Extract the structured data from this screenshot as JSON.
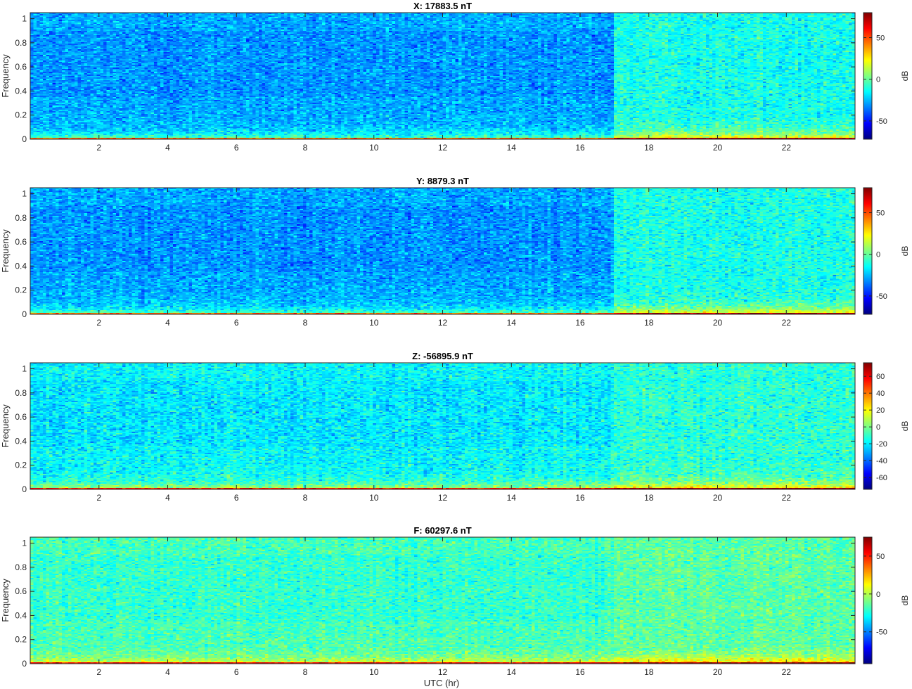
{
  "figure": {
    "xlabel": "UTC (hr)"
  },
  "colormap": "jet",
  "chart_data": [
    {
      "type": "heatmap",
      "title": "X: 17883.5 nT",
      "xlabel": "",
      "ylabel": "Frequency",
      "colorbar_label": "dB",
      "xlim": [
        0,
        24
      ],
      "ylim": [
        0,
        1.05
      ],
      "xticks": [
        2,
        4,
        6,
        8,
        10,
        12,
        14,
        16,
        18,
        20,
        22
      ],
      "yticks": [
        0,
        0.2,
        0.4,
        0.6,
        0.8,
        1
      ],
      "clim": [
        -72,
        80
      ],
      "cticks": [
        -50,
        0,
        50
      ],
      "base_level": -28,
      "late_level": -12,
      "shift_hour": 17
    },
    {
      "type": "heatmap",
      "title": "Y: 8879.3 nT",
      "xlabel": "",
      "ylabel": "Frequency",
      "colorbar_label": "dB",
      "xlim": [
        0,
        24
      ],
      "ylim": [
        0,
        1.05
      ],
      "xticks": [
        2,
        4,
        6,
        8,
        10,
        12,
        14,
        16,
        18,
        20,
        22
      ],
      "yticks": [
        0,
        0.2,
        0.4,
        0.6,
        0.8,
        1
      ],
      "clim": [
        -72,
        80
      ],
      "cticks": [
        -50,
        0,
        50
      ],
      "base_level": -28,
      "late_level": -12,
      "shift_hour": 17
    },
    {
      "type": "heatmap",
      "title": "Z: -56895.9 nT",
      "xlabel": "",
      "ylabel": "Frequency",
      "colorbar_label": "dB",
      "xlim": [
        0,
        24
      ],
      "ylim": [
        0,
        1.05
      ],
      "xticks": [
        2,
        4,
        6,
        8,
        10,
        12,
        14,
        16,
        18,
        20,
        22
      ],
      "yticks": [
        0,
        0.2,
        0.4,
        0.6,
        0.8,
        1
      ],
      "clim": [
        -74,
        76
      ],
      "cticks": [
        -60,
        -40,
        -20,
        0,
        20,
        40,
        60
      ],
      "base_level": -18,
      "late_level": -12,
      "shift_hour": 17
    },
    {
      "type": "heatmap",
      "title": "F: 60297.6 nT",
      "xlabel": "UTC (hr)",
      "ylabel": "Frequency",
      "colorbar_label": "dB",
      "xlim": [
        0,
        24
      ],
      "ylim": [
        0,
        1.05
      ],
      "xticks": [
        2,
        4,
        6,
        8,
        10,
        12,
        14,
        16,
        18,
        20,
        22
      ],
      "yticks": [
        0,
        0.2,
        0.4,
        0.6,
        0.8,
        1
      ],
      "clim": [
        -92,
        75
      ],
      "cticks": [
        -50,
        0,
        50
      ],
      "base_level": -18,
      "late_level": -15,
      "shift_hour": 17
    }
  ]
}
